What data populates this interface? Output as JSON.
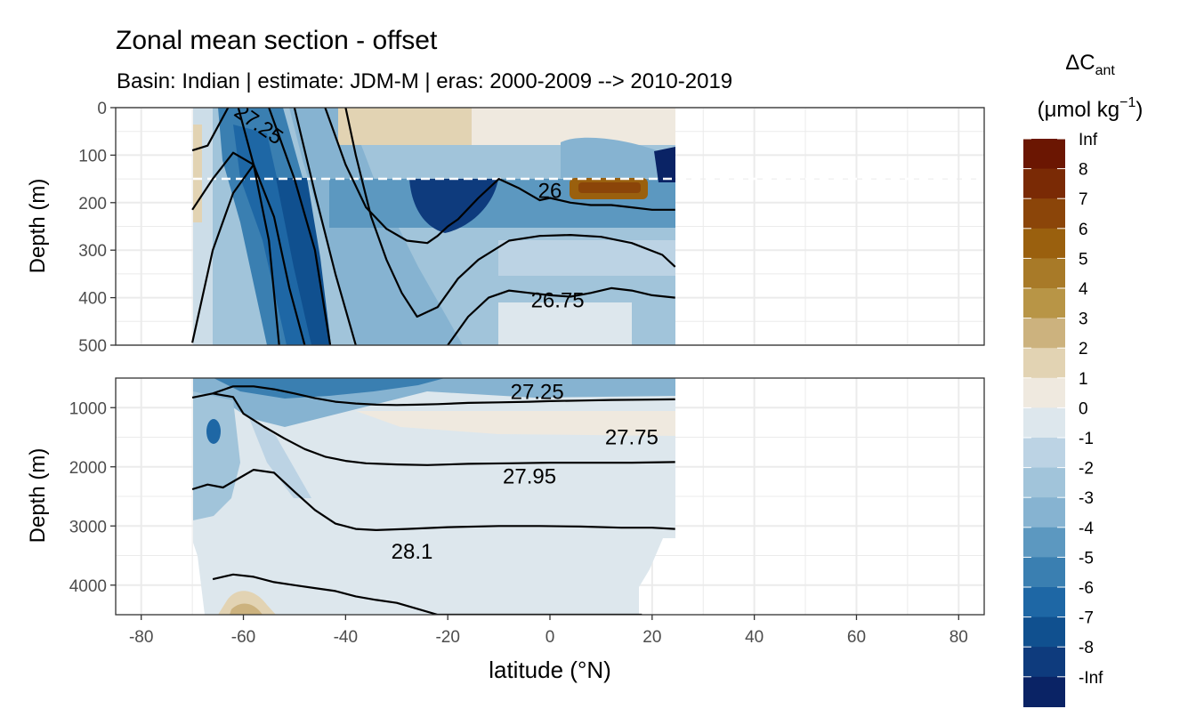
{
  "chart_data": {
    "type": "heatmap",
    "title": "Zonal mean section - offset",
    "subtitle": "Basin: Indian | estimate: JDM-M | eras: 2000-2009 --> 2010-2019",
    "xlabel": "latitude (°N)",
    "ylabel": "Depth (m)",
    "x_ticks": [
      "-80",
      "-60",
      "-40",
      "-20",
      "0",
      "20",
      "40",
      "60",
      "80"
    ],
    "x_tick_values": [
      -80,
      -60,
      -40,
      -20,
      0,
      20,
      40,
      60,
      80
    ],
    "xlim": [
      -85,
      85
    ],
    "data_x_range": [
      -70,
      24.5
    ],
    "reference_depth": 150,
    "panels": [
      {
        "name": "upper",
        "ylim": [
          0,
          500
        ],
        "y_ticks": [
          "0",
          "100",
          "200",
          "300",
          "400",
          "500"
        ],
        "y_tick_values": [
          0,
          100,
          200,
          300,
          400,
          500
        ],
        "contour_labels": [
          {
            "text": "27.25",
            "lat": -57,
            "depth": 35,
            "angle": 35
          },
          {
            "text": "26",
            "lat": 0,
            "depth": 175,
            "angle": 0
          },
          {
            "text": "26.75",
            "lat": 1.5,
            "depth": 405,
            "angle": 0
          }
        ],
        "contours": [
          {
            "lat": [
              -70,
              -66,
              -62,
              -58
            ],
            "depth": [
              495,
              300,
              180,
              120
            ]
          },
          {
            "lat": [
              -70,
              -66,
              -62,
              -58,
              -55,
              -53
            ],
            "depth": [
              215,
              150,
              95,
              120,
              280,
              500
            ]
          },
          {
            "lat": [
              -70,
              -67,
              -63
            ],
            "depth": [
              90,
              80,
              0
            ]
          },
          {
            "lat": [
              -61,
              -58,
              -54,
              -51,
              -48
            ],
            "depth": [
              0,
              120,
              230,
              380,
              500
            ]
          },
          {
            "lat": [
              -55,
              -50,
              -46,
              -43
            ],
            "depth": [
              0,
              150,
              300,
              500
            ]
          },
          {
            "lat": [
              -50,
              -46,
              -42,
              -38
            ],
            "depth": [
              0,
              180,
              350,
              500
            ]
          },
          {
            "lat": [
              -44,
              -40,
              -36,
              -32,
              -28,
              -24,
              -22,
              -20,
              -18,
              -14,
              -10,
              -6,
              -2,
              0,
              4,
              8,
              12,
              16,
              20,
              24.5
            ],
            "depth": [
              0,
              120,
              210,
              255,
              280,
              285,
              270,
              250,
              235,
              190,
              150,
              170,
              195,
              190,
              200,
              205,
              205,
              210,
              215,
              215
            ]
          },
          {
            "lat": [
              -40,
              -38,
              -35,
              -32,
              -29,
              -26,
              -22,
              -18,
              -14,
              -8,
              -2,
              4,
              10,
              16,
              22,
              24.5
            ],
            "depth": [
              0,
              100,
              230,
              320,
              390,
              440,
              420,
              360,
              320,
              280,
              270,
              268,
              272,
              285,
              310,
              335
            ]
          },
          {
            "lat": [
              -20,
              -16,
              -12,
              -8,
              -4,
              0,
              4,
              8,
              12,
              16,
              20,
              24.5
            ],
            "depth": [
              500,
              440,
              400,
              385,
              390,
              395,
              398,
              390,
              380,
              385,
              395,
              400
            ]
          }
        ]
      },
      {
        "name": "lower",
        "ylim": [
          500,
          4500
        ],
        "y_ticks": [
          "1000",
          "2000",
          "3000",
          "4000"
        ],
        "y_tick_values": [
          1000,
          2000,
          3000,
          4000
        ],
        "contour_labels": [
          {
            "text": "27.25",
            "lat": -2.5,
            "depth": 730,
            "angle": 0
          },
          {
            "text": "27.75",
            "lat": 16,
            "depth": 1500,
            "angle": 0
          },
          {
            "text": "27.95",
            "lat": -4,
            "depth": 2160,
            "angle": 0
          },
          {
            "text": "28.1",
            "lat": -27,
            "depth": 3430,
            "angle": 0
          }
        ],
        "contours": [
          {
            "lat": [
              -70,
              -66,
              -62,
              -58,
              -54,
              -50,
              -46,
              -42,
              -38,
              -34,
              -30,
              -26,
              -22,
              -16,
              -10,
              -4,
              0,
              6,
              12,
              18,
              24.5
            ],
            "depth": [
              830,
              760,
              640,
              640,
              690,
              760,
              840,
              900,
              930,
              950,
              955,
              950,
              940,
              920,
              910,
              900,
              890,
              880,
              870,
              865,
              860
            ]
          },
          {
            "lat": [
              -66,
              -62,
              -60,
              -56,
              -52,
              -48,
              -44,
              -40,
              -36,
              -30,
              -24,
              -16,
              -8,
              0,
              8,
              16,
              24.5
            ],
            "depth": [
              760,
              820,
              1100,
              1320,
              1520,
              1700,
              1830,
              1900,
              1940,
              1960,
              1970,
              1950,
              1940,
              1930,
              1930,
              1930,
              1920
            ]
          },
          {
            "lat": [
              -70,
              -67,
              -64,
              -61,
              -58,
              -54,
              -50,
              -46,
              -42,
              -38,
              -34,
              -28,
              -20,
              -10,
              -2,
              6,
              14,
              20,
              24.5
            ],
            "depth": [
              2380,
              2300,
              2350,
              2200,
              2050,
              2100,
              2420,
              2730,
              2960,
              3050,
              3070,
              3050,
              3020,
              3000,
              3000,
              3010,
              3030,
              3030,
              3050
            ]
          },
          {
            "lat": [
              -66,
              -62,
              -58,
              -54,
              -50,
              -46,
              -42,
              -38,
              -34,
              -30,
              -26,
              -22,
              -18,
              -14,
              -10,
              -6,
              0,
              6,
              12,
              18
            ],
            "depth": [
              3900,
              3820,
              3860,
              3950,
              4000,
              4050,
              4100,
              4190,
              4250,
              4300,
              4400,
              4500,
              4500,
              4500,
              4500,
              4500,
              4500,
              4500,
              4500,
              4500
            ]
          }
        ]
      }
    ],
    "legend": {
      "title_main": "ΔC",
      "title_sub": "ant",
      "units_main": "(μmol kg",
      "units_sup": "−1",
      "units_close": ")",
      "labels": [
        "Inf",
        "8",
        "7",
        "6",
        "5",
        "4",
        "3",
        "2",
        "1",
        "0",
        "-1",
        "-2",
        "-3",
        "-4",
        "-5",
        "-6",
        "-7",
        "-8",
        "-Inf"
      ],
      "colors": [
        "#6B1602",
        "#7A2A05",
        "#8B4509",
        "#9A600E",
        "#A87A28",
        "#B89546",
        "#CCB27E",
        "#E2D3B3",
        "#EFE9DF",
        "#DDE7ED",
        "#BCD3E4",
        "#A1C4DA",
        "#86B3D1",
        "#5C98C0",
        "#3A7FB1",
        "#1E67A5",
        "#10508F",
        "#0E3B7D",
        "#0A2365"
      ]
    }
  }
}
